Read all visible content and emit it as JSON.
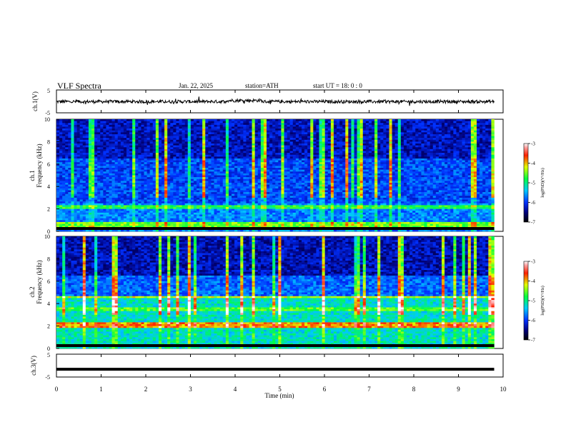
{
  "header": {
    "title": "VLF  Spectra",
    "date": "Jan. 22, 2025",
    "station": "station=ATH",
    "start": "start  UT  =   18: 0  : 0"
  },
  "chart_data": [
    {
      "type": "line",
      "id": "ch1-waveform",
      "ylabel": "ch.1(V)",
      "ylim": [
        -5,
        5
      ],
      "y_ticks": [
        "5",
        "-5"
      ],
      "xlim": [
        0,
        10
      ],
      "series": [
        {
          "values_min_max": "approx noisy waveform, amplitude ~±1 V, x from 0 to 9.8 min"
        }
      ]
    },
    {
      "type": "heatmap",
      "id": "ch1-spectrogram",
      "ylabel": "ch.1\nFrequency  (kHz)",
      "ylim": [
        0,
        10
      ],
      "y_ticks": [
        "0",
        "2",
        "4",
        "6",
        "8",
        "10"
      ],
      "xlim": [
        0,
        9.8
      ],
      "colorbar": {
        "label": "log(PSD)(V²/Hz)",
        "range": [
          -7,
          -3
        ],
        "ticks": [
          "-3",
          "-4",
          "-5",
          "-6",
          "-7"
        ]
      }
    },
    {
      "type": "heatmap",
      "id": "ch2-spectrogram",
      "ylabel": "ch.2\nFrequency  (kHz)",
      "ylim": [
        0,
        10
      ],
      "y_ticks": [
        "0",
        "2",
        "4",
        "6",
        "8",
        "10"
      ],
      "xlim": [
        0,
        9.8
      ],
      "colorbar": {
        "label": "log(PSD)(V²/Hz)",
        "range": [
          -7,
          -3
        ],
        "ticks": [
          "-3",
          "-4",
          "-5",
          "-6",
          "-7"
        ]
      }
    },
    {
      "type": "line",
      "id": "ch3-waveform",
      "ylabel": "ch.3(V)",
      "ylim": [
        -5,
        5
      ],
      "y_ticks": [
        "5",
        "-5"
      ],
      "xlim": [
        0,
        10
      ],
      "series": [
        {
          "values": [
            -1.6,
            -1.6
          ]
        }
      ]
    }
  ],
  "x_axis": {
    "label": "Time  (min)",
    "ticks": [
      "0",
      "1",
      "2",
      "3",
      "4",
      "5",
      "6",
      "7",
      "8",
      "9",
      "10"
    ]
  }
}
